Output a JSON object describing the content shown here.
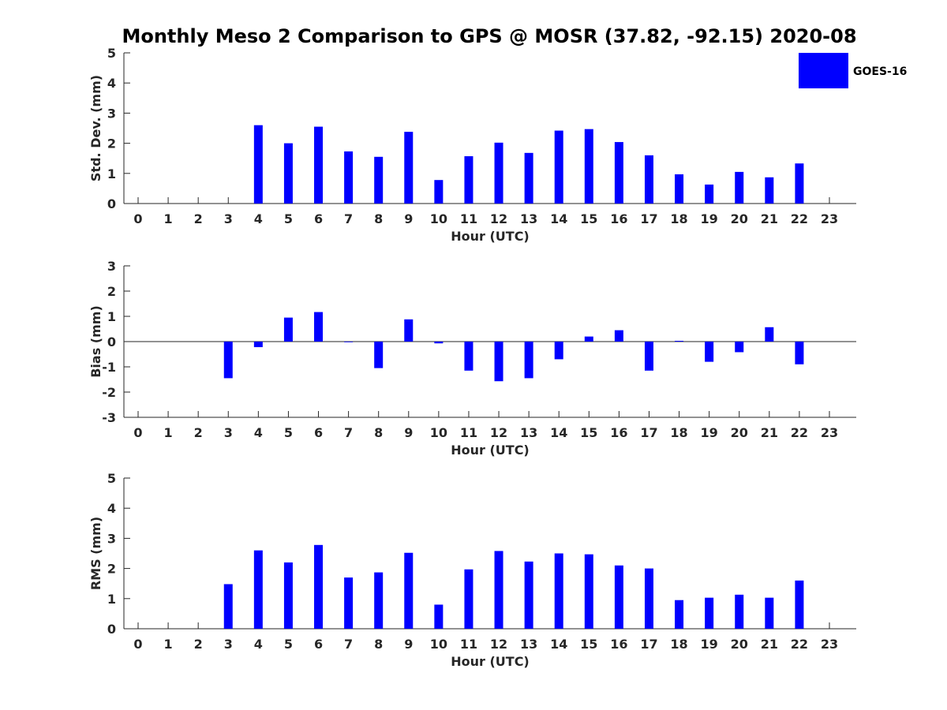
{
  "title": "Monthly Meso 2 Comparison to GPS @ MOSR (37.82, -92.15) 2020-08",
  "colors": {
    "bar": "#0000ff",
    "axis": "#262626",
    "background": "#ffffff"
  },
  "chart_data": [
    {
      "type": "bar",
      "xlabel": "Hour (UTC)",
      "ylabel": "Std. Dev. (mm)",
      "categories": [
        "0",
        "1",
        "2",
        "3",
        "4",
        "5",
        "6",
        "7",
        "8",
        "9",
        "10",
        "11",
        "12",
        "13",
        "14",
        "15",
        "16",
        "17",
        "18",
        "19",
        "20",
        "21",
        "22",
        "23"
      ],
      "ylim": [
        0,
        5
      ],
      "yticks": [
        "0",
        "1",
        "2",
        "3",
        "4",
        "5"
      ],
      "grid": false,
      "legend": {
        "position": "top-right",
        "entries": [
          "GOES-16"
        ]
      },
      "series": [
        {
          "name": "GOES-16",
          "values": [
            null,
            null,
            null,
            null,
            2.6,
            2.0,
            2.55,
            1.73,
            1.55,
            2.38,
            0.78,
            1.57,
            2.02,
            1.68,
            2.42,
            2.47,
            2.04,
            1.6,
            0.97,
            0.63,
            1.05,
            0.87,
            1.33,
            null
          ]
        }
      ]
    },
    {
      "type": "bar",
      "xlabel": "Hour (UTC)",
      "ylabel": "Bias (mm)",
      "categories": [
        "0",
        "1",
        "2",
        "3",
        "4",
        "5",
        "6",
        "7",
        "8",
        "9",
        "10",
        "11",
        "12",
        "13",
        "14",
        "15",
        "16",
        "17",
        "18",
        "19",
        "20",
        "21",
        "22",
        "23"
      ],
      "ylim": [
        -3,
        3
      ],
      "yticks": [
        "-3",
        "-2",
        "-1",
        "0",
        "1",
        "2",
        "3"
      ],
      "grid": false,
      "series": [
        {
          "name": "GOES-16",
          "values": [
            null,
            null,
            null,
            -1.45,
            -0.22,
            0.95,
            1.17,
            0.0,
            -1.05,
            0.88,
            -0.07,
            -1.15,
            -1.57,
            -1.45,
            -0.7,
            0.2,
            0.45,
            -1.15,
            0.03,
            -0.8,
            -0.42,
            0.57,
            -0.9,
            null
          ]
        }
      ]
    },
    {
      "type": "bar",
      "xlabel": "Hour (UTC)",
      "ylabel": "RMS (mm)",
      "categories": [
        "0",
        "1",
        "2",
        "3",
        "4",
        "5",
        "6",
        "7",
        "8",
        "9",
        "10",
        "11",
        "12",
        "13",
        "14",
        "15",
        "16",
        "17",
        "18",
        "19",
        "20",
        "21",
        "22",
        "23"
      ],
      "ylim": [
        0,
        5
      ],
      "yticks": [
        "0",
        "1",
        "2",
        "3",
        "4",
        "5"
      ],
      "grid": false,
      "series": [
        {
          "name": "GOES-16",
          "values": [
            null,
            null,
            null,
            1.48,
            2.6,
            2.2,
            2.78,
            1.7,
            1.87,
            2.52,
            0.8,
            1.97,
            2.58,
            2.23,
            2.5,
            2.47,
            2.1,
            2.0,
            0.95,
            1.03,
            1.13,
            1.03,
            1.6,
            null
          ]
        }
      ]
    }
  ]
}
